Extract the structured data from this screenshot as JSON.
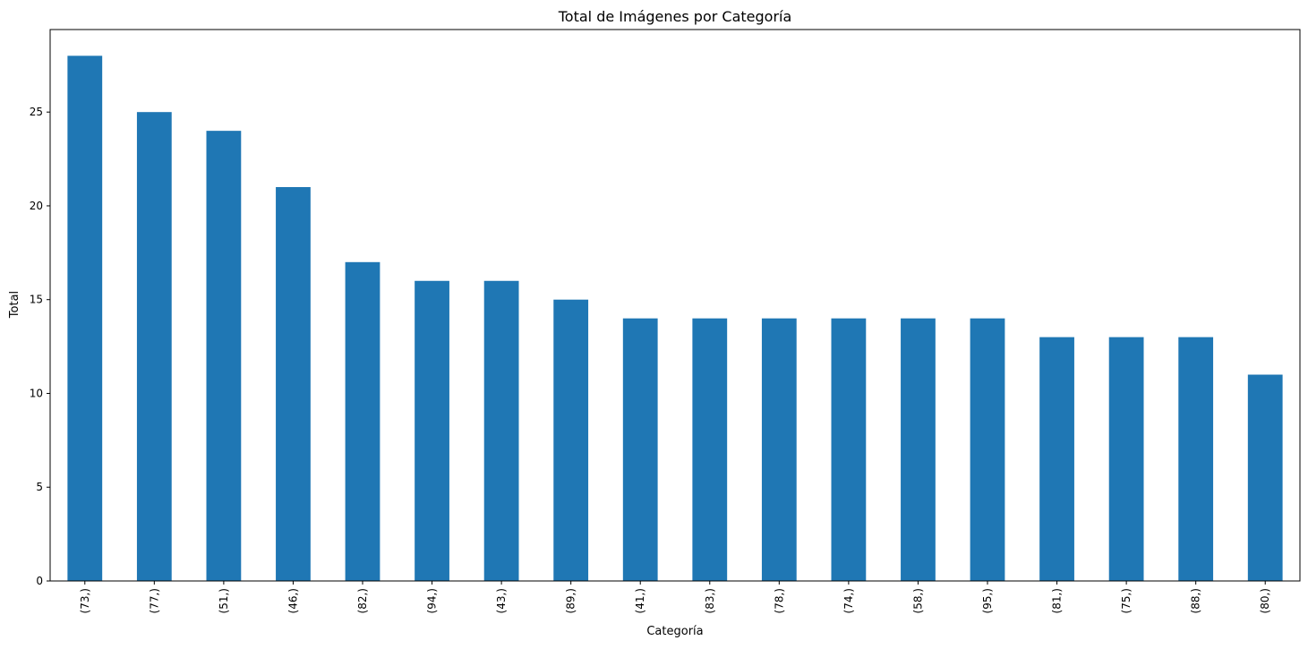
{
  "chart_data": {
    "type": "bar",
    "title": "Total de Imágenes por Categoría",
    "xlabel": "Categoría",
    "ylabel": "Total",
    "categories": [
      "(73,)",
      "(77,)",
      "(51,)",
      "(46,)",
      "(82,)",
      "(94,)",
      "(43,)",
      "(89,)",
      "(41,)",
      "(83,)",
      "(78,)",
      "(74,)",
      "(58,)",
      "(95,)",
      "(81,)",
      "(75,)",
      "(88,)",
      "(80,)"
    ],
    "values": [
      28,
      25,
      24,
      21,
      17,
      16,
      16,
      15,
      14,
      14,
      14,
      14,
      14,
      14,
      13,
      13,
      13,
      11
    ],
    "ylim": [
      0,
      29.4
    ],
    "yticks": [
      0,
      5,
      10,
      15,
      20,
      25
    ],
    "grid": false,
    "legend": "none",
    "bar_color": "#1f77b4"
  }
}
